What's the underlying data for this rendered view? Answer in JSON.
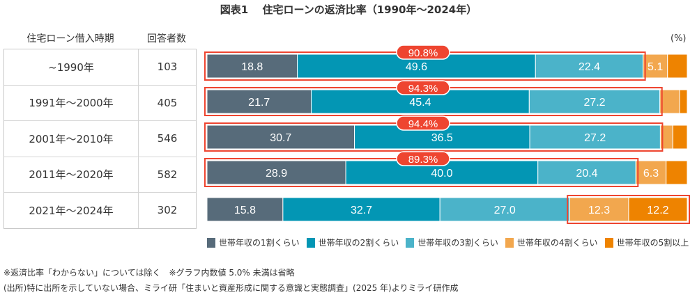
{
  "title": "図表1　 住宅ローンの返済比率（1990年～2024年）",
  "table": {
    "headers": {
      "period": "住宅ローン借入時期",
      "count": "回答者数"
    },
    "rows": [
      {
        "period": "~1990年",
        "count": "103"
      },
      {
        "period": "1991年～2000年",
        "count": "405"
      },
      {
        "period": "2001年～2010年",
        "count": "546"
      },
      {
        "period": "2011年～2020年",
        "count": "582"
      },
      {
        "period": "2021年～2024年",
        "count": "302"
      }
    ]
  },
  "unit_label": "(%)",
  "chart_data": {
    "type": "bar",
    "orientation": "horizontal",
    "stacked": true,
    "title": "住宅ローンの返済比率（1990年～2024年）",
    "xlabel": "",
    "ylabel": "",
    "unit": "%",
    "xlim": [
      0,
      100
    ],
    "categories": [
      "~1990年",
      "1991年～2000年",
      "2001年～2010年",
      "2011年～2020年",
      "2021年～2024年"
    ],
    "series": [
      {
        "name": "世帯年収の1割くらい",
        "color": "#576B7A",
        "values": [
          18.8,
          21.7,
          30.7,
          28.9,
          15.8
        ],
        "labels": [
          "18.8",
          "21.7",
          "30.7",
          "28.9",
          "15.8"
        ]
      },
      {
        "name": "世帯年収の2割くらい",
        "color": "#0396B4",
        "values": [
          49.6,
          45.4,
          36.5,
          40.0,
          32.7
        ],
        "labels": [
          "49.6",
          "45.4",
          "36.5",
          "40.0",
          "32.7"
        ]
      },
      {
        "name": "世帯年収の3割くらい",
        "color": "#4BB3C9",
        "values": [
          22.4,
          27.2,
          27.2,
          20.4,
          27.0
        ],
        "labels": [
          "22.4",
          "27.2",
          "27.2",
          "20.4",
          "27.0"
        ]
      },
      {
        "name": "世帯年収の4割くらい",
        "color": "#F2A74E",
        "values": [
          5.1,
          4.1,
          2.6,
          6.3,
          12.3
        ],
        "labels": [
          "5.1",
          "",
          "",
          "6.3",
          "12.3"
        ]
      },
      {
        "name": "世帯年収の5割以上",
        "color": "#EE8300",
        "values": [
          4.1,
          1.6,
          3.0,
          4.4,
          12.2
        ],
        "labels": [
          "",
          "",
          "",
          "",
          "12.2"
        ]
      }
    ],
    "highlights": [
      {
        "row": 0,
        "from_series": 0,
        "to_series": 2,
        "label": "90.8%"
      },
      {
        "row": 1,
        "from_series": 0,
        "to_series": 2,
        "label": "94.3%"
      },
      {
        "row": 2,
        "from_series": 0,
        "to_series": 2,
        "label": "94.4%"
      },
      {
        "row": 3,
        "from_series": 0,
        "to_series": 2,
        "label": "89.3%"
      },
      {
        "row": 4,
        "from_series": 3,
        "to_series": 4,
        "label": ""
      }
    ],
    "highlight_color": "#EE4530",
    "legend_position": "bottom"
  },
  "notes": [
    "※返済比率「わからない」については除く　※グラフ内数値 5.0% 未満は省略",
    "(出所)特に出所を示していない場合、ミライ研「住まいと資産形成に関する意識と実態調査」(2025 年)よりミライ研作成"
  ]
}
